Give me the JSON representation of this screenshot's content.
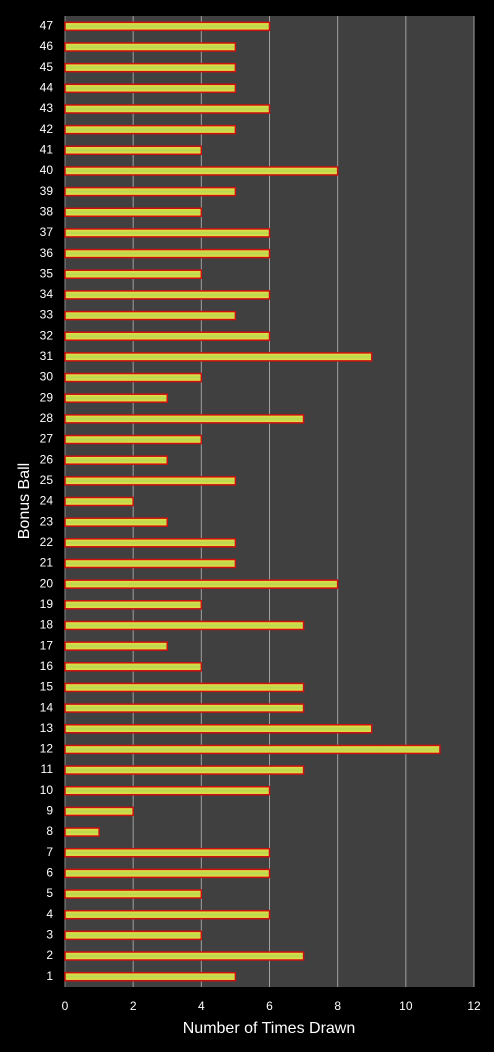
{
  "chart_data": {
    "type": "bar",
    "orientation": "horizontal",
    "x_label": "Number of Times Drawn",
    "y_label": "Bonus Ball",
    "categories": [
      "1",
      "2",
      "3",
      "4",
      "5",
      "6",
      "7",
      "8",
      "9",
      "10",
      "11",
      "12",
      "13",
      "14",
      "15",
      "16",
      "17",
      "18",
      "19",
      "20",
      "21",
      "22",
      "23",
      "24",
      "25",
      "26",
      "27",
      "28",
      "29",
      "30",
      "31",
      "32",
      "33",
      "34",
      "35",
      "36",
      "37",
      "38",
      "39",
      "40",
      "41",
      "42",
      "43",
      "44",
      "45",
      "46",
      "47"
    ],
    "values": [
      5,
      7,
      4,
      6,
      4,
      6,
      6,
      1,
      2,
      6,
      7,
      11,
      9,
      7,
      7,
      4,
      3,
      7,
      4,
      8,
      5,
      5,
      3,
      2,
      5,
      3,
      4,
      7,
      3,
      4,
      9,
      6,
      5,
      6,
      4,
      6,
      6,
      4,
      5,
      8,
      4,
      5,
      6,
      5,
      5,
      5,
      6
    ],
    "color": "#b8d850",
    "edgecolor": "#cc1010",
    "xlim": [
      0,
      12
    ],
    "xticks": [
      0,
      2,
      4,
      6,
      8,
      10,
      12
    ],
    "grid": true
  }
}
